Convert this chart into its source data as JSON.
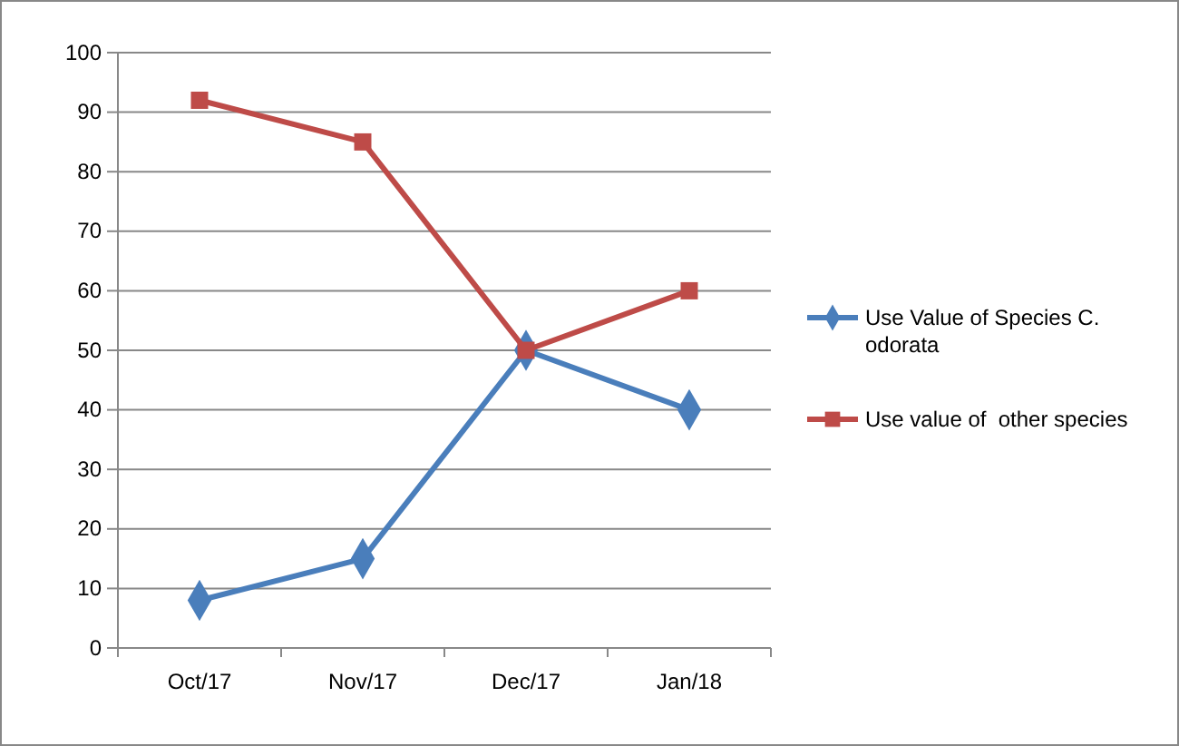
{
  "chart_data": {
    "type": "line",
    "categories": [
      "Oct/17",
      "Nov/17",
      "Dec/17",
      "Jan/18"
    ],
    "series": [
      {
        "name": "Use Value of Species C. odorata",
        "color": "#4a7ebb",
        "values": [
          8,
          15,
          50,
          40
        ],
        "marker": "diamond"
      },
      {
        "name": "Use value of  other species",
        "color": "#be4b48",
        "values": [
          92,
          85,
          50,
          60
        ],
        "marker": "square"
      }
    ],
    "ylim": [
      0,
      100
    ],
    "yticks": [
      0,
      10,
      20,
      30,
      40,
      50,
      60,
      70,
      80,
      90,
      100
    ],
    "grid": "y",
    "legend": "right",
    "line_style": "solid"
  }
}
